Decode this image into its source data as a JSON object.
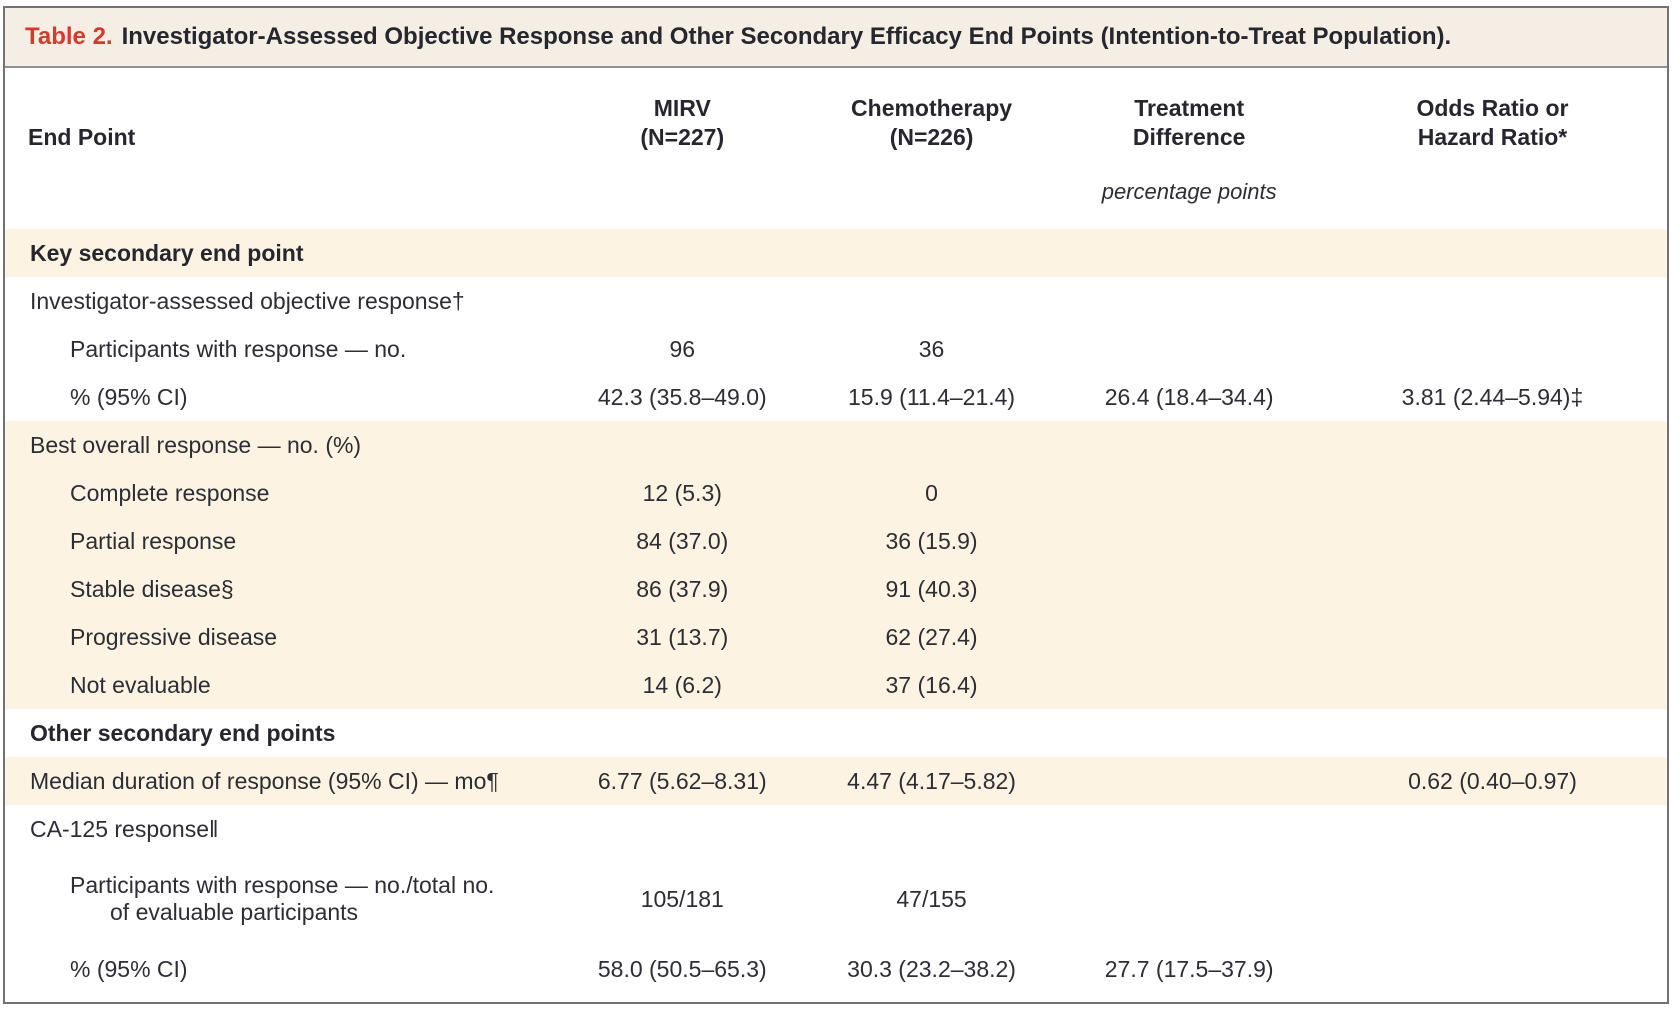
{
  "title": {
    "label": "Table 2.",
    "text": "Investigator-Assessed Objective Response and Other Secondary Efficacy End Points (Intention-to-Treat Population)."
  },
  "header": {
    "endpoint": "End Point",
    "mirv": [
      "MIRV",
      "(N=227)"
    ],
    "chemo": [
      "Chemotherapy",
      "(N=226)"
    ],
    "diff": [
      "Treatment",
      "Difference"
    ],
    "ratio": [
      "Odds Ratio or",
      "Hazard Ratio*"
    ],
    "units": "percentage points"
  },
  "rows": [
    {
      "label": "Key secondary end point"
    },
    {
      "label": "Investigator-assessed objective response†"
    },
    {
      "label": "Participants with response — no.",
      "mirv": "96",
      "chemo": "36"
    },
    {
      "label": "% (95% CI)",
      "mirv": "42.3 (35.8–49.0)",
      "chemo": "15.9 (11.4–21.4)",
      "diff": "26.4 (18.4–34.4)",
      "ratio": "3.81 (2.44–5.94)‡"
    },
    {
      "label": "Best overall response — no. (%)"
    },
    {
      "label": "Complete response",
      "mirv": "12 (5.3)",
      "chemo": "0"
    },
    {
      "label": "Partial response",
      "mirv": "84 (37.0)",
      "chemo": "36 (15.9)"
    },
    {
      "label": "Stable disease§",
      "mirv": "86 (37.9)",
      "chemo": "91 (40.3)"
    },
    {
      "label": "Progressive disease",
      "mirv": "31 (13.7)",
      "chemo": "62 (27.4)"
    },
    {
      "label": "Not evaluable",
      "mirv": "14 (6.2)",
      "chemo": "37 (16.4)"
    },
    {
      "label": "Other secondary end points"
    },
    {
      "label": "Median duration of response (95% CI) — mo¶",
      "mirv": "6.77 (5.62–8.31)",
      "chemo": "4.47 (4.17–5.82)",
      "ratio": "0.62 (0.40–0.97)"
    },
    {
      "label": "CA-125 response‖"
    },
    {
      "label": "Participants with response — no./total no.",
      "label2": "of evaluable participants",
      "mirv": "105/181",
      "chemo": "47/155"
    },
    {
      "label": "% (95% CI)",
      "mirv": "58.0 (50.5–65.3)",
      "chemo": "30.3 (23.2–38.2)",
      "diff": "27.7 (17.5–37.9)"
    }
  ],
  "colors": {
    "accent_red": "#d8392c",
    "row_shade": "#fdf3e2",
    "title_bar_bg": "#f4eee5",
    "border_gray": "#717275",
    "text": "#2c2d35"
  }
}
